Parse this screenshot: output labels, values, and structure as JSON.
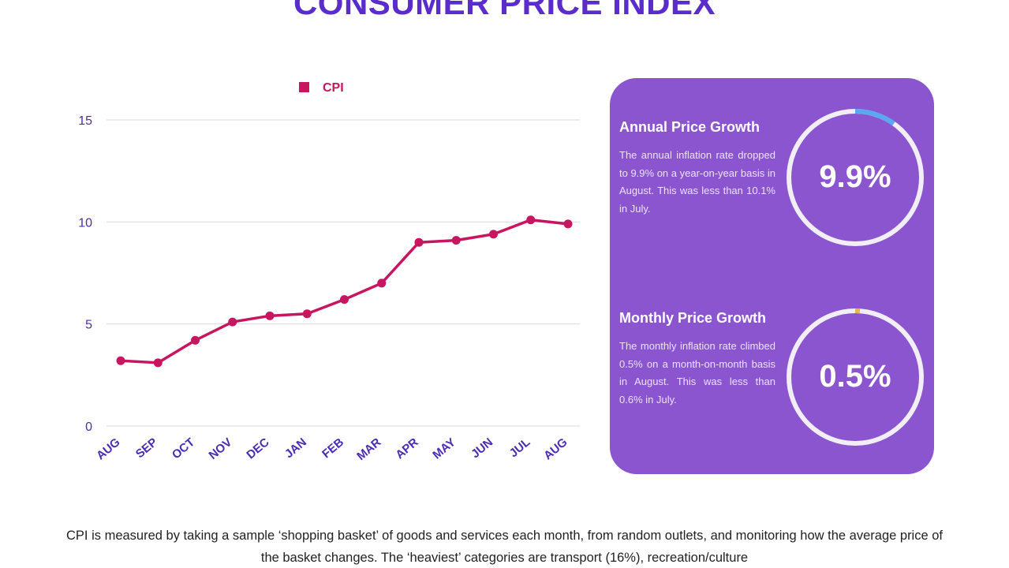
{
  "title": "CONSUMER PRICE INDEX",
  "chart_data": {
    "type": "line",
    "title": "",
    "xlabel": "",
    "ylabel": "",
    "categories": [
      "AUG",
      "SEP",
      "OCT",
      "NOV",
      "DEC",
      "JAN",
      "FEB",
      "MAR",
      "APR",
      "MAY",
      "JUN",
      "JUL",
      "AUG"
    ],
    "series": [
      {
        "name": "CPI",
        "values": [
          3.2,
          3.1,
          4.2,
          5.1,
          5.4,
          5.5,
          6.2,
          7.0,
          9.0,
          9.1,
          9.4,
          10.1,
          9.9
        ]
      }
    ],
    "yticks": [
      "0",
      "5",
      "10",
      "15"
    ],
    "ylim": [
      0,
      15
    ],
    "grid": true,
    "legend": "top-center",
    "colors": {
      "line": "#c8155f",
      "grid": "#d9d6ec",
      "ticks": "#4b2bb3"
    }
  },
  "stats_card": {
    "background": "#8a55cf",
    "annual": {
      "heading": "Annual Price Growth",
      "body": "The annual inflation rate dropped to 9.9% on a year-on-year basis in August. This was less than 10.1% in July.",
      "value": "9.9%",
      "ring_fraction": 0.099,
      "ring_color": "#5aa8f0"
    },
    "monthly": {
      "heading": "Monthly Price Growth",
      "body": "The monthly inflation rate climbed 0.5% on a month-on-month basis in August. This was less than 0.6% in July.",
      "value": "0.5%",
      "ring_fraction": 0.005,
      "ring_color": "#e8b64a"
    }
  },
  "footer": "CPI is measured by taking a sample ‘shopping basket’ of goods and services each month, from random outlets, and monitoring how the average price of the basket changes. The ‘heaviest’ categories are transport (16%), recreation/culture"
}
